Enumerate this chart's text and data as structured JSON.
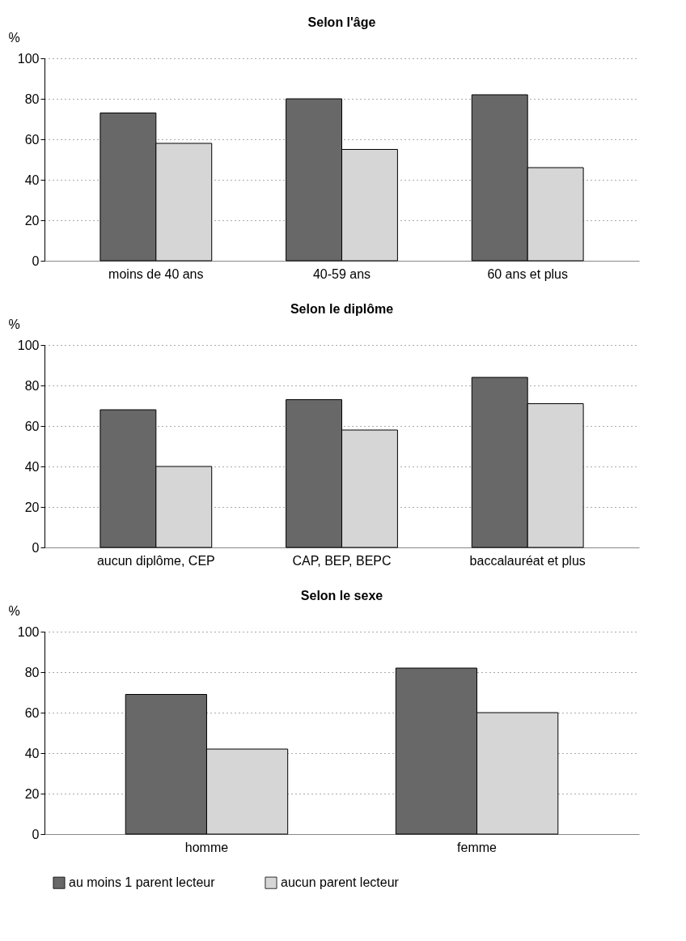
{
  "chart_data": [
    {
      "type": "bar",
      "title": "Selon l'âge",
      "ylabel": "%",
      "categories": [
        "moins de 40 ans",
        "40-59 ans",
        "60 ans et plus"
      ],
      "ylim": [
        0,
        100
      ],
      "yticks": [
        0,
        20,
        40,
        60,
        80,
        100
      ],
      "grid": "y",
      "legend": false,
      "series": [
        {
          "color": "#686868",
          "values": [
            73,
            80,
            82
          ]
        },
        {
          "color": "#d6d6d6",
          "values": [
            58,
            55,
            46
          ]
        }
      ]
    },
    {
      "type": "bar",
      "title": "Selon le diplôme",
      "ylabel": "%",
      "categories": [
        "aucun diplôme, CEP",
        "CAP, BEP, BEPC",
        "baccalauréat et plus"
      ],
      "ylim": [
        0,
        100
      ],
      "yticks": [
        0,
        20,
        40,
        60,
        80,
        100
      ],
      "grid": "y",
      "legend": false,
      "series": [
        {
          "color": "#686868",
          "values": [
            68,
            73,
            84
          ]
        },
        {
          "color": "#d6d6d6",
          "values": [
            40,
            58,
            71
          ]
        }
      ]
    },
    {
      "type": "bar",
      "title": "Selon le sexe",
      "ylabel": "%",
      "categories": [
        "homme",
        "femme"
      ],
      "ylim": [
        0,
        100
      ],
      "yticks": [
        0,
        20,
        40,
        60,
        80,
        100
      ],
      "grid": "y",
      "legend": "bottom left",
      "series": [
        {
          "name": "au moins 1 parent lecteur",
          "color": "#686868",
          "values": [
            69,
            82
          ]
        },
        {
          "name": "aucun parent lecteur",
          "color": "#d6d6d6",
          "values": [
            42,
            60
          ]
        }
      ]
    }
  ]
}
